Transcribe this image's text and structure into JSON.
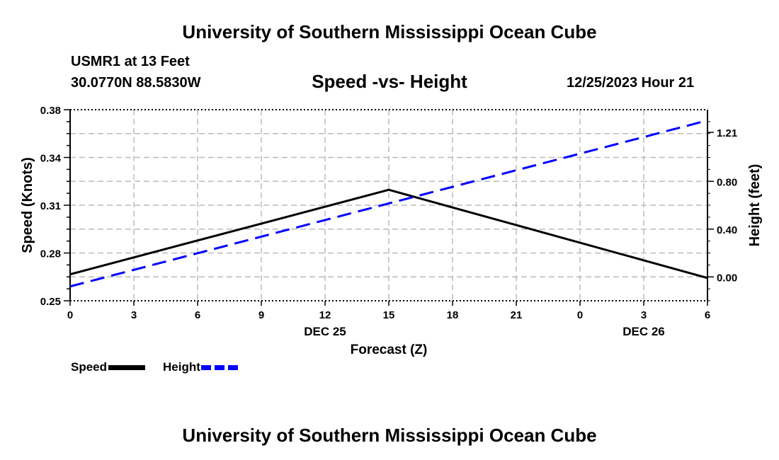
{
  "header": {
    "title": "University of Southern Mississippi Ocean Cube",
    "station": "USMR1 at 13 Feet",
    "coords": "30.0770N  88.5830W",
    "datetime": "12/25/2023 Hour 21"
  },
  "footer": {
    "title": "University of Southern Mississippi Ocean Cube"
  },
  "chart_data": {
    "type": "line",
    "title": "Speed -vs- Height",
    "xlabel": "Forecast (Z)",
    "ylabel": "Speed (Knots)",
    "y2label": "Height (feet)",
    "x": [
      0,
      3,
      6,
      9,
      12,
      15,
      18,
      21,
      24,
      27,
      30
    ],
    "x_tick_labels": [
      "0",
      "3",
      "6",
      "9",
      "12",
      "15",
      "18",
      "21",
      "0",
      "3",
      "6"
    ],
    "x_date_labels": [
      {
        "x": 12,
        "label": "DEC 25"
      },
      {
        "x": 27,
        "label": "DEC 26"
      }
    ],
    "xlim": [
      0,
      30
    ],
    "ylim": [
      0.25,
      0.38
    ],
    "y_ticks": [
      0.25,
      0.28,
      0.31,
      0.34,
      0.38
    ],
    "y_tick_labels": [
      "0.25",
      "0.28",
      "0.31",
      "0.34",
      "0.38"
    ],
    "y2lim": [
      -0.2,
      1.4
    ],
    "y2_ticks": [
      0.0,
      0.4,
      0.8,
      1.21
    ],
    "y2_tick_labels": [
      "0.00",
      "0.40",
      "0.80",
      "1.21"
    ],
    "grid": true,
    "legend_position": "bottom-left",
    "series": [
      {
        "name": "Speed",
        "axis": "left",
        "color": "#000000",
        "style": "solid",
        "x": [
          0,
          15,
          30
        ],
        "values": [
          0.268,
          0.3255,
          0.2655
        ]
      },
      {
        "name": "Height",
        "axis": "right",
        "color": "#0000ff",
        "style": "dashed",
        "x": [
          0,
          30
        ],
        "values": [
          -0.08,
          1.31
        ]
      }
    ]
  }
}
